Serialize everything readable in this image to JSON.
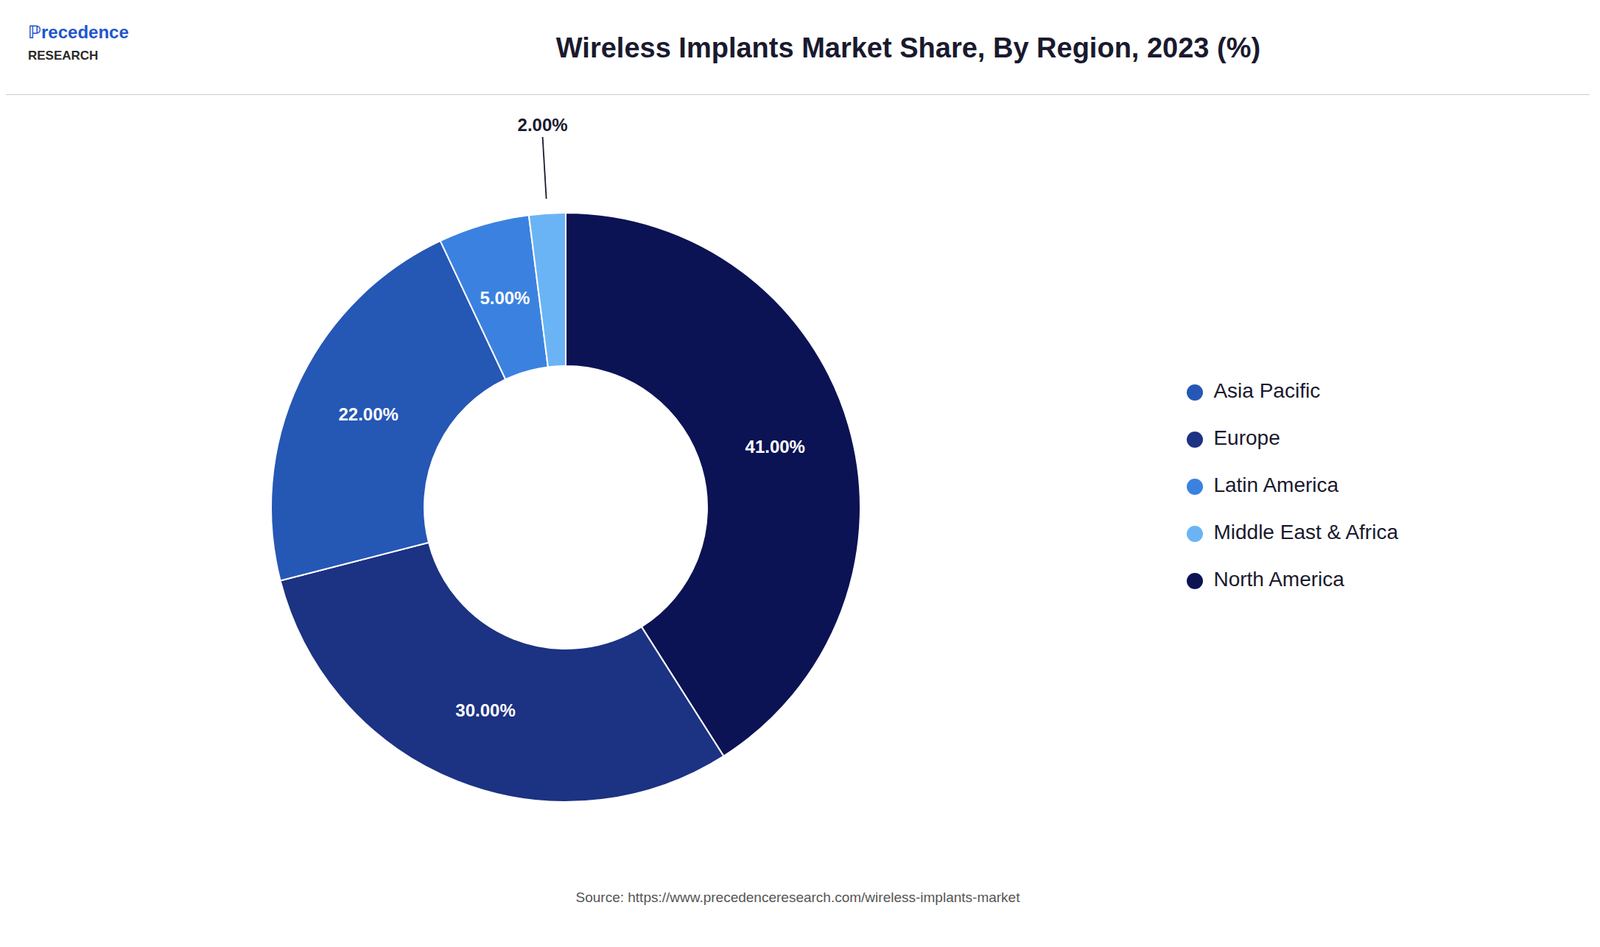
{
  "chart_data": {
    "type": "pie",
    "title": "Wireless Implants Market Share, By Region, 2023 (%)",
    "categories": [
      "North America",
      "Europe",
      "Asia Pacific",
      "Latin America",
      "Middle East & Africa"
    ],
    "values": [
      41.0,
      30.0,
      22.0,
      5.0,
      2.0
    ],
    "value_labels": [
      "41.00%",
      "30.00%",
      "22.00%",
      "5.00%",
      "2.00%"
    ],
    "colors": [
      "#0b1354",
      "#1c3282",
      "#2557b5",
      "#3b82e0",
      "#6ab4f5"
    ],
    "data_labels": true,
    "legend": "right",
    "annotations": [
      "ℙrecedence",
      "RESEARCH",
      "Source: https://www.precedenceresearch.com/wireless-implants-market"
    ]
  }
}
